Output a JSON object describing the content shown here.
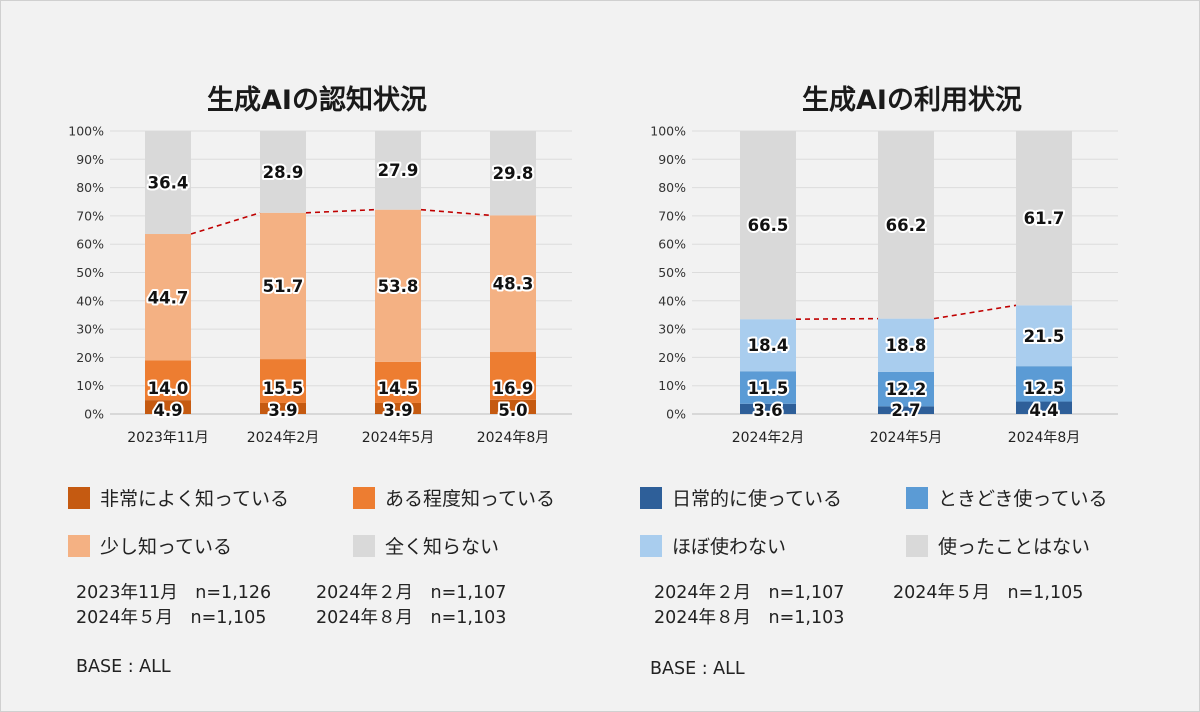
{
  "chart_data": [
    {
      "type": "bar",
      "stacked": true,
      "title": "生成AIの認知状況",
      "categories": [
        "2023年11月",
        "2024年2月",
        "2024年5月",
        "2024年8月"
      ],
      "ylim": [
        0,
        100
      ],
      "y_ticks": [
        "0%",
        "10%",
        "20%",
        "30%",
        "40%",
        "50%",
        "60%",
        "70%",
        "80%",
        "90%",
        "100%"
      ],
      "series": [
        {
          "name": "非常によく知っている",
          "color": "#c55a11",
          "values": [
            4.9,
            3.9,
            3.9,
            5.0
          ]
        },
        {
          "name": "ある程度知っている",
          "color": "#ed7d31",
          "values": [
            14.0,
            15.5,
            14.5,
            16.9
          ]
        },
        {
          "name": "少し知っている",
          "color": "#f4b183",
          "values": [
            44.7,
            51.7,
            53.8,
            48.3
          ]
        },
        {
          "name": "全く知らない",
          "color": "#d9d9d9",
          "values": [
            36.4,
            28.9,
            27.9,
            29.8
          ]
        }
      ],
      "value_labels": [
        [
          "4.9",
          "3.9",
          "3.9",
          "5.0"
        ],
        [
          "14.0",
          "15.5",
          "14.5",
          "16.9"
        ],
        [
          "44.7",
          "51.7",
          "53.8",
          "48.3"
        ],
        [
          "36.4",
          "28.9",
          "27.9",
          "29.8"
        ]
      ],
      "trend_line": {
        "style": "dashed",
        "color": "#c00000",
        "series_count": 3
      },
      "notes": [
        "2023年11月　n=1,126",
        "2024年２月　n=1,107",
        "2024年５月　n=1,105",
        "2024年８月　n=1,103"
      ],
      "base": "BASE : ALL"
    },
    {
      "type": "bar",
      "stacked": true,
      "title": "生成AIの利用状況",
      "categories": [
        "2024年2月",
        "2024年5月",
        "2024年8月"
      ],
      "ylim": [
        0,
        100
      ],
      "y_ticks": [
        "0%",
        "10%",
        "20%",
        "30%",
        "40%",
        "50%",
        "60%",
        "70%",
        "80%",
        "90%",
        "100%"
      ],
      "series": [
        {
          "name": "日常的に使っている",
          "color": "#2e5f99",
          "values": [
            3.6,
            2.7,
            4.4
          ]
        },
        {
          "name": "ときどき使っている",
          "color": "#5b9bd5",
          "values": [
            11.5,
            12.2,
            12.5
          ]
        },
        {
          "name": "ほぼ使わない",
          "color": "#a9cdee",
          "values": [
            18.4,
            18.8,
            21.5
          ]
        },
        {
          "name": "使ったことはない",
          "color": "#d9d9d9",
          "values": [
            66.5,
            66.2,
            61.7
          ]
        }
      ],
      "value_labels": [
        [
          "3.6",
          "2.7",
          "4.4"
        ],
        [
          "11.5",
          "12.2",
          "12.5"
        ],
        [
          "18.4",
          "18.8",
          "21.5"
        ],
        [
          "66.5",
          "66.2",
          "61.7"
        ]
      ],
      "trend_line": {
        "style": "dashed",
        "color": "#c00000",
        "series_count": 3
      },
      "notes": [
        "2024年２月　n=1,107",
        "2024年５月　n=1,105",
        "2024年８月　n=1,103"
      ],
      "base": "BASE : ALL"
    }
  ]
}
